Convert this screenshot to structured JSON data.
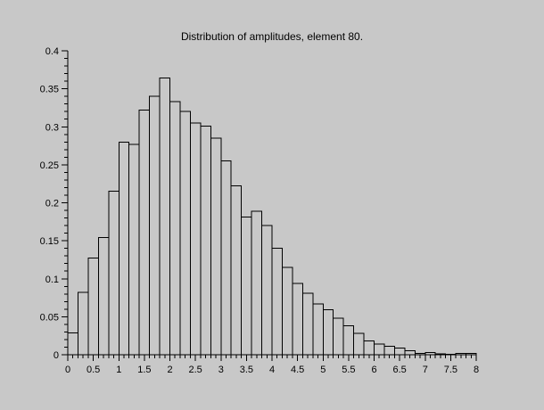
{
  "window": {
    "background": "#c8c8c8"
  },
  "chart_data": {
    "type": "bar",
    "subtype": "histogram-outline",
    "title": "Distribution of amplitudes, element 80.",
    "xlabel": "",
    "ylabel": "",
    "grid": false,
    "legend_position": "none",
    "xlim": [
      0,
      8
    ],
    "ylim": [
      0,
      0.4
    ],
    "bin_start": 0,
    "bin_width": 0.2,
    "values": [
      0.029,
      0.082,
      0.127,
      0.154,
      0.215,
      0.28,
      0.277,
      0.322,
      0.34,
      0.364,
      0.333,
      0.32,
      0.305,
      0.301,
      0.285,
      0.255,
      0.222,
      0.181,
      0.189,
      0.17,
      0.14,
      0.115,
      0.094,
      0.081,
      0.067,
      0.059,
      0.048,
      0.038,
      0.028,
      0.018,
      0.014,
      0.011,
      0.009,
      0.005,
      0.002,
      0.003,
      0.001,
      0.0005,
      0.002,
      0.0015
    ],
    "x_major_ticks": [
      0,
      0.5,
      1,
      1.5,
      2,
      2.5,
      3,
      3.5,
      4,
      4.5,
      5,
      5.5,
      6,
      6.5,
      7,
      7.5,
      8
    ],
    "x_tick_labels": [
      "0",
      "0.5",
      "1",
      "1.5",
      "2",
      "2.5",
      "3",
      "3.5",
      "4",
      "4.5",
      "5",
      "5.5",
      "6",
      "6.5",
      "7",
      "7.5",
      "8"
    ],
    "x_minor_step": 0.1,
    "y_major_ticks": [
      0,
      0.05,
      0.1,
      0.15,
      0.2,
      0.25,
      0.3,
      0.35,
      0.4
    ],
    "y_tick_labels": [
      "0",
      "0.05",
      "0.1",
      "0.15",
      "0.2",
      "0.25",
      "0.3",
      "0.35",
      "0.4"
    ],
    "y_minor_step": 0.01,
    "bar_fill": "none",
    "bar_stroke": "#000000",
    "axis_color": "#000000",
    "text_color": "#000000",
    "tick_font_size": 11,
    "title_font_size": 12
  }
}
